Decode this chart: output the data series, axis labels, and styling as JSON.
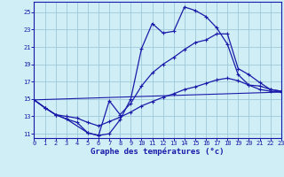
{
  "background_color": "#d0eef5",
  "grid_color": "#a0c8d8",
  "line_color": "#1a1aaa",
  "xlim_min": 0,
  "xlim_max": 23,
  "ylim_min": 10.5,
  "ylim_max": 26.2,
  "yticks": [
    11,
    13,
    15,
    17,
    19,
    21,
    23,
    25
  ],
  "xticks": [
    0,
    1,
    2,
    3,
    4,
    5,
    6,
    7,
    8,
    9,
    10,
    11,
    12,
    13,
    14,
    15,
    16,
    17,
    18,
    19,
    20,
    21,
    22,
    23
  ],
  "xlabel": "Graphe des températures (°c)",
  "line1_x": [
    0,
    1,
    2,
    3,
    4,
    5,
    6,
    7,
    8,
    9,
    10,
    11,
    12,
    13,
    14,
    15,
    16,
    17,
    18,
    19,
    20,
    21,
    22,
    23
  ],
  "line1_y": [
    14.9,
    14.0,
    13.2,
    12.7,
    12.3,
    11.1,
    10.8,
    11.0,
    12.6,
    15.0,
    20.8,
    23.7,
    22.6,
    22.8,
    25.6,
    25.2,
    24.5,
    23.2,
    21.3,
    17.8,
    16.6,
    16.5,
    16.1,
    15.9
  ],
  "line2_x": [
    0,
    1,
    2,
    3,
    5,
    6,
    7,
    8,
    9,
    10,
    11,
    12,
    13,
    14,
    15,
    16,
    17,
    18,
    19,
    20,
    21,
    22,
    23
  ],
  "line2_y": [
    14.9,
    14.0,
    13.2,
    12.7,
    11.1,
    10.8,
    14.8,
    13.2,
    14.5,
    16.5,
    18.0,
    19.0,
    19.8,
    20.7,
    21.5,
    21.8,
    22.5,
    22.5,
    18.5,
    17.8,
    16.9,
    16.1,
    15.9
  ],
  "line3_x": [
    0,
    1,
    2,
    3,
    4,
    5,
    6,
    7,
    8,
    9,
    10,
    11,
    12,
    13,
    14,
    15,
    16,
    17,
    18,
    19,
    20,
    21,
    22,
    23
  ],
  "line3_y": [
    14.9,
    14.0,
    13.2,
    13.0,
    12.8,
    12.3,
    11.9,
    12.4,
    12.9,
    13.5,
    14.2,
    14.7,
    15.2,
    15.6,
    16.1,
    16.4,
    16.8,
    17.2,
    17.4,
    17.1,
    16.6,
    16.1,
    15.9,
    15.8
  ],
  "line4_x": [
    0,
    23
  ],
  "line4_y": [
    14.9,
    15.8
  ]
}
